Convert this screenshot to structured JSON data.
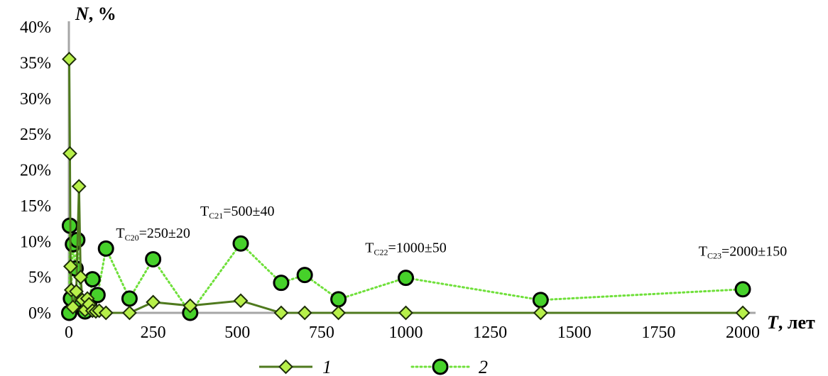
{
  "chart_data": {
    "type": "line",
    "xlabel_var": "T",
    "xlabel_unit": ", лет",
    "ylabel_var": "N",
    "ylabel_unit": ", %",
    "xlim": [
      0,
      2000
    ],
    "ylim": [
      0,
      40
    ],
    "x_ticks": [
      "0",
      "250",
      "500",
      "750",
      "1000",
      "1250",
      "1500",
      "1750",
      "2000"
    ],
    "y_ticks": [
      "0%",
      "5%",
      "10%",
      "15%",
      "20%",
      "25%",
      "30%",
      "35%",
      "40%"
    ],
    "grid": false,
    "legend_position": "bottom",
    "series": [
      {
        "name": "1",
        "color": "#4f7a1e",
        "marker": "diamond",
        "line": "solid",
        "points": [
          [
            1,
            35.5
          ],
          [
            3,
            22.3
          ],
          [
            5,
            6.5
          ],
          [
            7,
            3.2
          ],
          [
            12,
            0.8
          ],
          [
            22,
            3.0
          ],
          [
            30,
            17.7
          ],
          [
            35,
            5.0
          ],
          [
            40,
            1.8
          ],
          [
            48,
            0.4
          ],
          [
            55,
            2.0
          ],
          [
            60,
            1.2
          ],
          [
            70,
            0.3
          ],
          [
            80,
            0.2
          ],
          [
            90,
            0.3
          ],
          [
            110,
            0.0
          ],
          [
            180,
            0.0
          ],
          [
            250,
            1.5
          ],
          [
            360,
            1.0
          ],
          [
            510,
            1.7
          ],
          [
            630,
            0.0
          ],
          [
            700,
            0.0
          ],
          [
            800,
            0.0
          ],
          [
            1000,
            0.0
          ],
          [
            1400,
            0.0
          ],
          [
            2000,
            0.0
          ]
        ]
      },
      {
        "name": "2",
        "color": "#6fe03a",
        "marker": "circle",
        "line": "dotted",
        "points": [
          [
            1,
            0.0
          ],
          [
            3,
            12.2
          ],
          [
            6,
            2.0
          ],
          [
            12,
            9.6
          ],
          [
            20,
            6.2
          ],
          [
            25,
            10.2
          ],
          [
            35,
            1.0
          ],
          [
            48,
            0.2
          ],
          [
            60,
            1.2
          ],
          [
            70,
            4.7
          ],
          [
            85,
            2.5
          ],
          [
            110,
            9.0
          ],
          [
            180,
            2.0
          ],
          [
            250,
            7.5
          ],
          [
            360,
            0.0
          ],
          [
            510,
            9.7
          ],
          [
            630,
            4.2
          ],
          [
            700,
            5.3
          ],
          [
            800,
            1.9
          ],
          [
            1000,
            4.9
          ],
          [
            1400,
            1.8
          ],
          [
            2000,
            3.3
          ]
        ]
      }
    ],
    "annotations": [
      {
        "main": "T",
        "sub": "C20",
        "rest": "=250±20",
        "x": 250,
        "y": 10.5
      },
      {
        "main": "T",
        "sub": "C21",
        "rest": "=500±40",
        "x": 500,
        "y": 13.6
      },
      {
        "main": "T",
        "sub": "C22",
        "rest": "=1000±50",
        "x": 1000,
        "y": 8.5
      },
      {
        "main": "T",
        "sub": "C23",
        "rest": "=2000±150",
        "x": 2000,
        "y": 8.0
      }
    ]
  }
}
